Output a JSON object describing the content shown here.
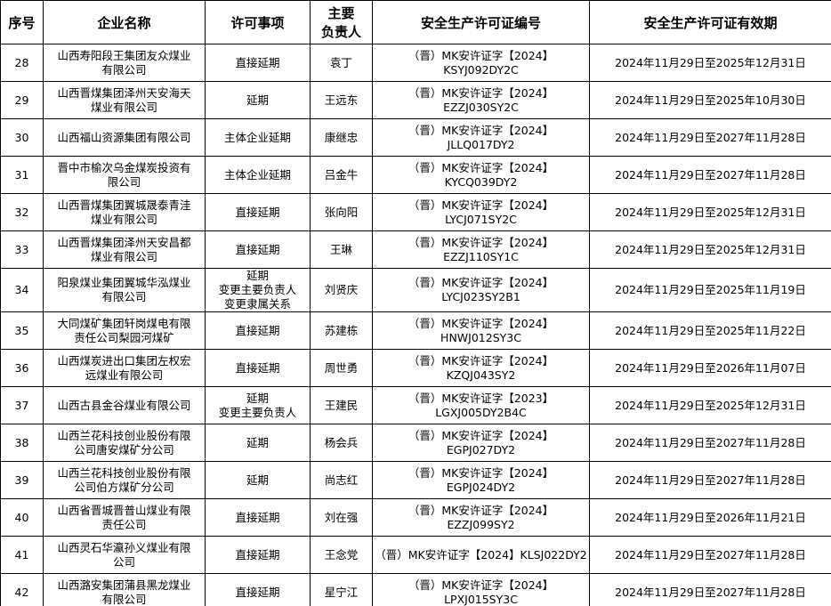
{
  "table": {
    "columns": [
      "序号",
      "企业名称",
      "许可事项",
      [
        "主要",
        "负责人"
      ],
      "安全生产许可证编号",
      "安全生产许可证有效期"
    ],
    "rows": [
      {
        "no": 28,
        "name": [
          "山西寿阳段王集团友众煤业",
          "有限公司"
        ],
        "item": [
          "直接延期"
        ],
        "person": "袁丁",
        "license": "（晋）MK安许证字【2024】KSYJ092DY2C",
        "validity": "2024年11月29日至2025年12月31日"
      },
      {
        "no": 29,
        "name": [
          "山西晋煤集团泽州天安海天",
          "煤业有限公司"
        ],
        "item": [
          "延期"
        ],
        "person": "王远东",
        "license": "（晋）MK安许证字【2024】EZZJ030SY2C",
        "validity": "2024年11月29日至2025年10月30日"
      },
      {
        "no": 30,
        "name": [
          "山西福山资源集团有限公司"
        ],
        "item": [
          "主体企业延期"
        ],
        "person": "康继忠",
        "license": "（晋）MK安许证字【2024】JLLQ017DY2",
        "validity": "2024年11月29日至2027年11月28日"
      },
      {
        "no": 31,
        "name": [
          "晋中市榆次乌金煤炭投资有",
          "限公司"
        ],
        "item": [
          "主体企业延期"
        ],
        "person": "吕金牛",
        "license": "（晋）MK安许证字【2024】KYCQ039DY2",
        "validity": "2024年11月29日至2027年11月28日"
      },
      {
        "no": 32,
        "name": [
          "山西晋煤集团翼城晟泰青洼",
          "煤业有限公司"
        ],
        "item": [
          "直接延期"
        ],
        "person": "张向阳",
        "license": "（晋）MK安许证字【2024】LYCJ071SY2C",
        "validity": "2024年11月29日至2025年12月31日"
      },
      {
        "no": 33,
        "name": [
          "山西晋煤集团泽州天安昌都",
          "煤业有限公司"
        ],
        "item": [
          "直接延期"
        ],
        "person": "王琳",
        "license": "（晋）MK安许证字【2024】EZZJ110SY1C",
        "validity": "2024年11月29日至2025年12月31日"
      },
      {
        "no": 34,
        "name": [
          "阳泉煤业集团翼城华泓煤业",
          "有限公司"
        ],
        "item": [
          "延期",
          "变更主要负责人",
          "变更隶属关系"
        ],
        "person": "刘贤庆",
        "license": "（晋）MK安许证字【2024】LYCJ023SY2B1",
        "validity": "2024年11月29日至2025年11月19日"
      },
      {
        "no": 35,
        "name": [
          "大同煤矿集团轩岗煤电有限",
          "责任公司梨园河煤矿"
        ],
        "item": [
          "直接延期"
        ],
        "person": "苏建栋",
        "license": "（晋）MK安许证字【2024】HNWJ012SY3C",
        "validity": "2024年11月29日至2025年11月22日"
      },
      {
        "no": 36,
        "name": [
          "山西煤炭进出口集团左权宏",
          "远煤业有限公司"
        ],
        "item": [
          "直接延期"
        ],
        "person": "周世勇",
        "license": "（晋）MK安许证字【2024】KZQJ043SY2",
        "validity": "2024年11月29日至2026年11月07日"
      },
      {
        "no": 37,
        "name": [
          "山西古县金谷煤业有限公司"
        ],
        "item": [
          "延期",
          "变更主要负责人"
        ],
        "person": "王建民",
        "license": "（晋）MK安许证字【2023】LGXJ005DY2B4C",
        "validity": "2024年11月29日至2025年12月31日"
      },
      {
        "no": 38,
        "name": [
          "山西兰花科技创业股份有限",
          "公司唐安煤矿分公司"
        ],
        "item": [
          "延期"
        ],
        "person": "杨会兵",
        "license": "（晋）MK安许证字【2024】EGPJ027DY2",
        "validity": "2024年11月29日至2027年11月28日"
      },
      {
        "no": 39,
        "name": [
          "山西兰花科技创业股份有限",
          "公司伯方煤矿分公司"
        ],
        "item": [
          "延期"
        ],
        "person": "尚志红",
        "license": "（晋）MK安许证字【2024】EGPJ024DY2",
        "validity": "2024年11月29日至2027年11月28日"
      },
      {
        "no": 40,
        "name": [
          "山西省晋城晋普山煤业有限",
          "责任公司"
        ],
        "item": [
          "直接延期"
        ],
        "person": "刘在强",
        "license": "（晋）MK安许证字【2024】EZZJ099SY2",
        "validity": "2024年11月29日至2026年11月21日"
      },
      {
        "no": 41,
        "name": [
          "山西灵石华瀛孙义煤业有限",
          "公司"
        ],
        "item": [
          "直接延期"
        ],
        "person": "王念党",
        "license": "（晋）MK安许证字【2024】KLSJ022DY2",
        "validity": "2024年11月29日至2027年11月28日"
      },
      {
        "no": 42,
        "name": [
          "山西潞安集团蒲县黑龙煤业",
          "有限公司"
        ],
        "item": [
          "直接延期"
        ],
        "person": "星宁江",
        "license": "（晋）MK安许证字【2024】LPXJ015SY3C",
        "validity": "2024年11月29日至2027年11月28日"
      }
    ]
  }
}
